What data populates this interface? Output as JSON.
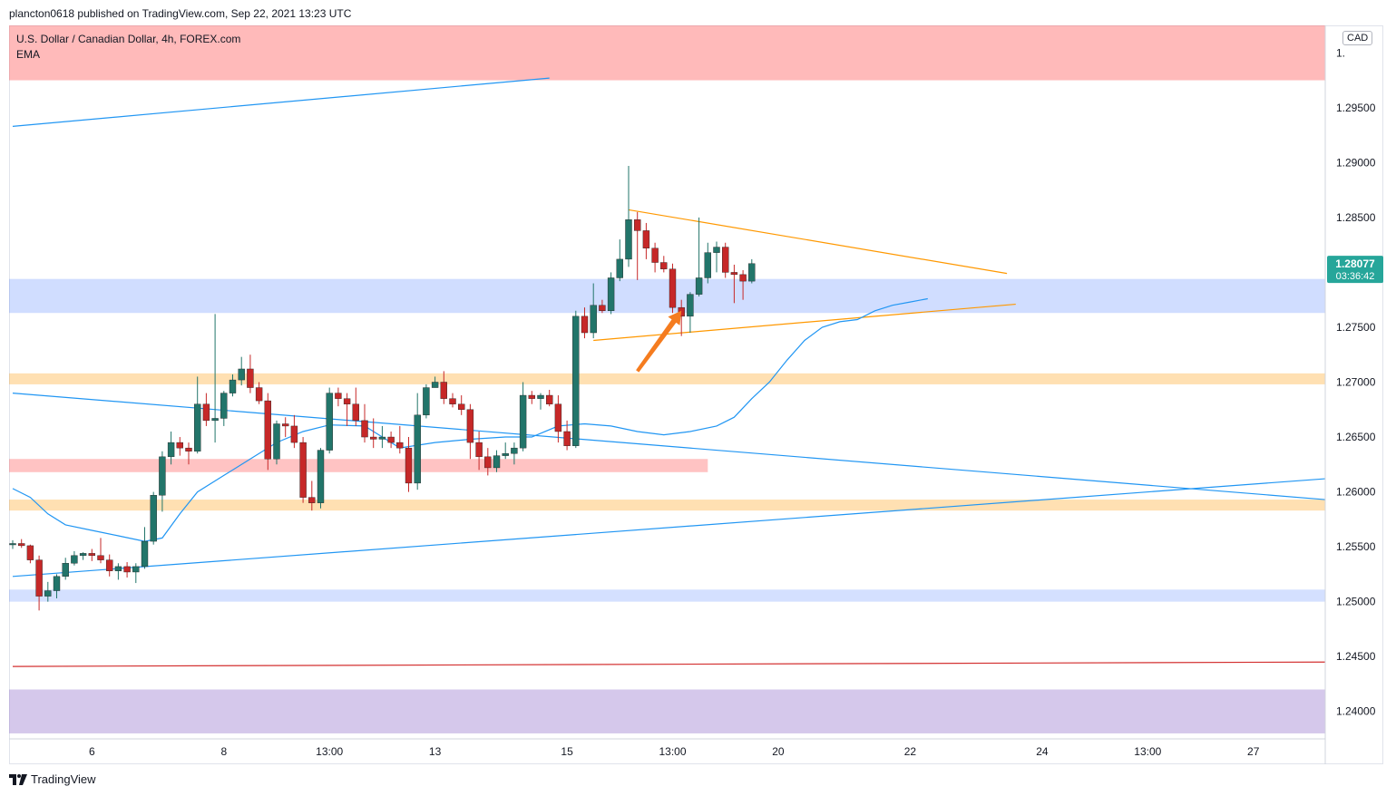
{
  "header": {
    "text": "plancton0618 published on TradingView.com, Sep 22, 2021 13:23 UTC"
  },
  "legend": {
    "symbol": "U.S. Dollar / Canadian Dollar, 4h, FOREX.com",
    "indicator": "EMA"
  },
  "currency_badge": "CAD",
  "footer": {
    "brand": "TradingView"
  },
  "price_tag": {
    "price": "1.28077",
    "countdown": "03:36:42",
    "color": "#26a69a"
  },
  "colors": {
    "up": "#22756a",
    "down": "#c62828",
    "ema": "#2196f3",
    "trendline": "#2196f3",
    "triangle": "#ff9800",
    "arrow": "#f57c1f",
    "redline": "#d32f2f"
  },
  "chart_data": {
    "type": "candlestick",
    "ylim": [
      1.2375,
      1.3025
    ],
    "xlim": [
      0,
      150
    ],
    "y_ticks": [
      "1.24000",
      "1.24500",
      "1.25000",
      "1.25500",
      "1.26000",
      "1.26500",
      "1.27000",
      "1.27500",
      "1.28000",
      "1.28500",
      "1.29000",
      "1.29500"
    ],
    "x_ticks": [
      {
        "label": "6",
        "x": 9
      },
      {
        "label": "8",
        "x": 24
      },
      {
        "label": "13:00",
        "x": 36
      },
      {
        "label": "13",
        "x": 48
      },
      {
        "label": "15",
        "x": 63
      },
      {
        "label": "13:00",
        "x": 75
      },
      {
        "label": "20",
        "x": 87
      },
      {
        "label": "22",
        "x": 102
      },
      {
        "label": "24",
        "x": 117
      },
      {
        "label": "13:00",
        "x": 129
      },
      {
        "label": "27",
        "x": 141
      }
    ],
    "candles": [
      [
        1.2552,
        1.2556,
        1.2548,
        1.2553
      ],
      [
        1.2553,
        1.2557,
        1.2549,
        1.2551
      ],
      [
        1.2551,
        1.2552,
        1.2535,
        1.2538
      ],
      [
        1.2538,
        1.2542,
        1.2492,
        1.2505
      ],
      [
        1.2505,
        1.2518,
        1.25,
        1.251
      ],
      [
        1.251,
        1.2525,
        1.2503,
        1.2523
      ],
      [
        1.2523,
        1.254,
        1.252,
        1.2535
      ],
      [
        1.2535,
        1.2546,
        1.2533,
        1.2542
      ],
      [
        1.2542,
        1.2545,
        1.2538,
        1.2544
      ],
      [
        1.2544,
        1.2548,
        1.2537,
        1.2542
      ],
      [
        1.2542,
        1.2558,
        1.2535,
        1.2538
      ],
      [
        1.2538,
        1.2543,
        1.2523,
        1.2528
      ],
      [
        1.2528,
        1.2535,
        1.252,
        1.2532
      ],
      [
        1.2532,
        1.2536,
        1.2522,
        1.2527
      ],
      [
        1.2527,
        1.2535,
        1.2517,
        1.2532
      ],
      [
        1.2532,
        1.2568,
        1.253,
        1.2555
      ],
      [
        1.2555,
        1.26,
        1.2552,
        1.2597
      ],
      [
        1.2597,
        1.2637,
        1.2582,
        1.2632
      ],
      [
        1.2632,
        1.2655,
        1.2625,
        1.2645
      ],
      [
        1.2645,
        1.265,
        1.2633,
        1.264
      ],
      [
        1.264,
        1.2645,
        1.2625,
        1.2637
      ],
      [
        1.2637,
        1.2705,
        1.2635,
        1.268
      ],
      [
        1.268,
        1.269,
        1.266,
        1.2665
      ],
      [
        1.2665,
        1.2762,
        1.2645,
        1.2667
      ],
      [
        1.2667,
        1.2692,
        1.266,
        1.269
      ],
      [
        1.269,
        1.2707,
        1.2687,
        1.2702
      ],
      [
        1.2702,
        1.2723,
        1.2697,
        1.2712
      ],
      [
        1.2712,
        1.2725,
        1.269,
        1.2695
      ],
      [
        1.2695,
        1.27,
        1.268,
        1.2683
      ],
      [
        1.2683,
        1.269,
        1.262,
        1.263
      ],
      [
        1.263,
        1.2665,
        1.2625,
        1.2662
      ],
      [
        1.2662,
        1.2668,
        1.265,
        1.266
      ],
      [
        1.266,
        1.267,
        1.264,
        1.2645
      ],
      [
        1.2645,
        1.265,
        1.259,
        1.2595
      ],
      [
        1.2595,
        1.261,
        1.2583,
        1.259
      ],
      [
        1.259,
        1.264,
        1.2585,
        1.2638
      ],
      [
        1.2638,
        1.2695,
        1.2635,
        1.269
      ],
      [
        1.269,
        1.2695,
        1.2678,
        1.2685
      ],
      [
        1.2685,
        1.269,
        1.266,
        1.268
      ],
      [
        1.268,
        1.2695,
        1.266,
        1.2665
      ],
      [
        1.2665,
        1.268,
        1.2645,
        1.265
      ],
      [
        1.265,
        1.2667,
        1.264,
        1.2648
      ],
      [
        1.2648,
        1.266,
        1.264,
        1.265
      ],
      [
        1.265,
        1.2655,
        1.264,
        1.2645
      ],
      [
        1.2645,
        1.266,
        1.2635,
        1.264
      ],
      [
        1.264,
        1.265,
        1.26,
        1.2608
      ],
      [
        1.2608,
        1.269,
        1.2602,
        1.267
      ],
      [
        1.267,
        1.2698,
        1.2667,
        1.2695
      ],
      [
        1.2695,
        1.2705,
        1.2695,
        1.27
      ],
      [
        1.27,
        1.271,
        1.268,
        1.2685
      ],
      [
        1.2685,
        1.269,
        1.2677,
        1.268
      ],
      [
        1.268,
        1.2688,
        1.267,
        1.2675
      ],
      [
        1.2675,
        1.268,
        1.263,
        1.2645
      ],
      [
        1.2645,
        1.2655,
        1.262,
        1.2632
      ],
      [
        1.2632,
        1.264,
        1.2615,
        1.2622
      ],
      [
        1.2622,
        1.2638,
        1.2618,
        1.2633
      ],
      [
        1.2633,
        1.2645,
        1.263,
        1.2635
      ],
      [
        1.2635,
        1.2645,
        1.2625,
        1.264
      ],
      [
        1.264,
        1.27,
        1.2637,
        1.2688
      ],
      [
        1.2688,
        1.2692,
        1.268,
        1.2685
      ],
      [
        1.2685,
        1.269,
        1.2675,
        1.2688
      ],
      [
        1.2688,
        1.2693,
        1.2678,
        1.268
      ],
      [
        1.268,
        1.2688,
        1.2645,
        1.2655
      ],
      [
        1.2655,
        1.2665,
        1.2638,
        1.2642
      ],
      [
        1.2642,
        1.2765,
        1.264,
        1.276
      ],
      [
        1.276,
        1.2768,
        1.274,
        1.2745
      ],
      [
        1.2745,
        1.279,
        1.274,
        1.277
      ],
      [
        1.277,
        1.2775,
        1.2763,
        1.2765
      ],
      [
        1.2765,
        1.28,
        1.2762,
        1.2795
      ],
      [
        1.2795,
        1.283,
        1.2792,
        1.2812
      ],
      [
        1.2812,
        1.2897,
        1.2805,
        1.2848
      ],
      [
        1.2848,
        1.2855,
        1.2793,
        1.2838
      ],
      [
        1.2838,
        1.2845,
        1.2812,
        1.2822
      ],
      [
        1.2822,
        1.2827,
        1.28,
        1.2809
      ],
      [
        1.2809,
        1.2815,
        1.28,
        1.2803
      ],
      [
        1.2803,
        1.2808,
        1.2763,
        1.2768
      ],
      [
        1.2768,
        1.2775,
        1.2742,
        1.276
      ],
      [
        1.276,
        1.2782,
        1.2745,
        1.278
      ],
      [
        1.278,
        1.285,
        1.2778,
        1.2795
      ],
      [
        1.2795,
        1.2827,
        1.279,
        1.2818
      ],
      [
        1.2818,
        1.2828,
        1.28,
        1.2823
      ],
      [
        1.2823,
        1.2827,
        1.2795,
        1.28
      ],
      [
        1.28,
        1.2807,
        1.2772,
        1.2798
      ],
      [
        1.2798,
        1.2802,
        1.2775,
        1.2792
      ],
      [
        1.2792,
        1.2812,
        1.279,
        1.2808
      ]
    ],
    "ema": [
      [
        0,
        1.2603
      ],
      [
        2,
        1.2595
      ],
      [
        4,
        1.258
      ],
      [
        6,
        1.257
      ],
      [
        9,
        1.2565
      ],
      [
        12,
        1.256
      ],
      [
        15,
        1.2555
      ],
      [
        17,
        1.2558
      ],
      [
        19,
        1.258
      ],
      [
        21,
        1.26
      ],
      [
        24,
        1.2615
      ],
      [
        27,
        1.263
      ],
      [
        30,
        1.2645
      ],
      [
        33,
        1.2655
      ],
      [
        36,
        1.2661
      ],
      [
        40,
        1.266
      ],
      [
        44,
        1.264
      ],
      [
        48,
        1.2645
      ],
      [
        52,
        1.2648
      ],
      [
        56,
        1.265
      ],
      [
        59,
        1.265
      ],
      [
        62,
        1.266
      ],
      [
        65,
        1.2662
      ],
      [
        68,
        1.266
      ],
      [
        71,
        1.2655
      ],
      [
        74,
        1.2652
      ],
      [
        77,
        1.2655
      ],
      [
        80,
        1.266
      ],
      [
        82,
        1.2668
      ],
      [
        84,
        1.2685
      ],
      [
        86,
        1.27
      ],
      [
        88,
        1.272
      ],
      [
        90,
        1.2738
      ],
      [
        92,
        1.275
      ],
      [
        94,
        1.2755
      ],
      [
        96,
        1.2757
      ],
      [
        98,
        1.2765
      ],
      [
        100,
        1.277
      ],
      [
        102,
        1.2773
      ],
      [
        104,
        1.2776
      ]
    ],
    "trendlines": [
      {
        "color": "trendline",
        "x1": 0,
        "y1": 1.2933,
        "x2": 61,
        "y2": 1.2977
      },
      {
        "color": "trendline",
        "x1": 0,
        "y1": 1.269,
        "x2": 150,
        "y2": 1.2593
      },
      {
        "color": "trendline",
        "x1": 0,
        "y1": 1.2523,
        "x2": 150,
        "y2": 1.2612
      },
      {
        "color": "redline",
        "x1": 0,
        "y1": 1.2441,
        "x2": 150,
        "y2": 1.2445
      },
      {
        "color": "triangle",
        "x1": 70,
        "y1": 1.2857,
        "x2": 113,
        "y2": 1.2799
      },
      {
        "color": "triangle",
        "x1": 66,
        "y1": 1.2738,
        "x2": 114,
        "y2": 1.2771
      }
    ],
    "zones": [
      {
        "y1": 1.2975,
        "y2": 1.3025,
        "color": "rgba(255,82,82,0.40)",
        "x_end": 150
      },
      {
        "y1": 1.2763,
        "y2": 1.2794,
        "color": "rgba(41,98,255,0.22)",
        "x_end": 150
      },
      {
        "y1": 1.2698,
        "y2": 1.2708,
        "color": "rgba(255,152,0,0.30)",
        "x_end": 150
      },
      {
        "y1": 1.2618,
        "y2": 1.263,
        "color": "rgba(255,82,82,0.35)",
        "x_end": 79
      },
      {
        "y1": 1.2583,
        "y2": 1.2593,
        "color": "rgba(255,152,0,0.30)",
        "x_end": 150
      },
      {
        "y1": 1.25,
        "y2": 1.2511,
        "color": "rgba(41,98,255,0.20)",
        "x_end": 150
      },
      {
        "y1": 1.238,
        "y2": 1.242,
        "color": "rgba(149,117,205,0.40)",
        "x_end": 150
      }
    ],
    "annotation_arrow": {
      "x1": 71,
      "y1": 1.271,
      "x2": 76,
      "y2": 1.2765
    }
  }
}
